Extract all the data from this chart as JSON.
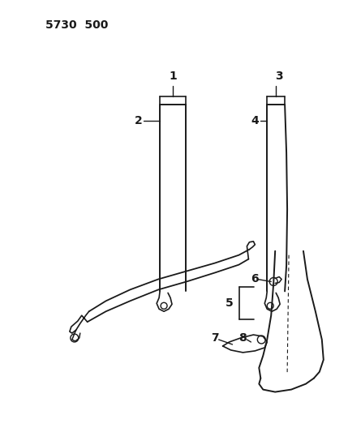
{
  "title": "5730  500",
  "bg_color": "#ffffff",
  "line_color": "#1a1a1a",
  "title_fontsize": 10,
  "label_fontsize": 9,
  "figsize": [
    4.29,
    5.33
  ],
  "dpi": 100
}
